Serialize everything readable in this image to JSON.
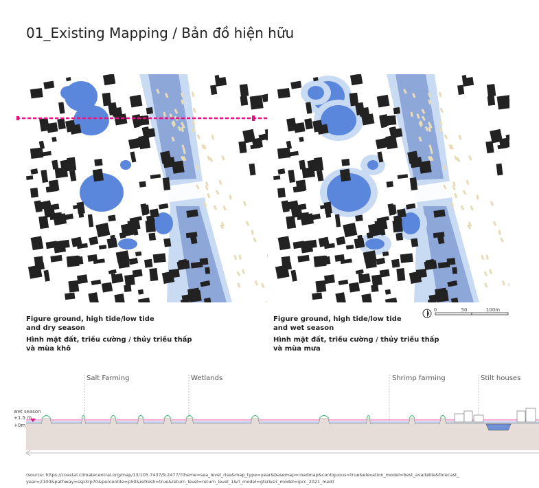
{
  "title": "01_Existing Mapping / Bản đồ hiện hữu",
  "maps": [
    {
      "caption_en": [
        "Figure ground, high tide/low tide",
        "and dry season"
      ],
      "caption_vi": [
        "Hình mặt đất, triều cường / thủy triều thấp",
        "và mùa khô"
      ]
    },
    {
      "caption_en": [
        "Figure ground, high tide/low tide",
        "and wet season"
      ],
      "caption_vi": [
        "Hình mặt đất, triều cường / thủy triều thấp",
        "và mùa mưa"
      ]
    }
  ],
  "scale": [
    "0",
    "50",
    "100m"
  ],
  "section": {
    "labels": [
      "Salt Farming",
      "Wetlands",
      "Shrimp farming",
      "Stilt houses"
    ],
    "levels": [
      "wet season",
      "+1.5 m",
      "+0m"
    ]
  },
  "source": [
    "(source: https://coastal.climatecentral.org/map/13/105.7437/9.2477/?theme=sea_level_rise&map_type=year&basemap=roadmap&contiguous=true&elevation_model=best_available&forecast_",
    "year=2100&pathway=ssp3rp70&percentile=p50&refresh=true&return_level=return_level_1&rl_model=gtsr&slr_model=ipcc_2021_med)"
  ]
}
